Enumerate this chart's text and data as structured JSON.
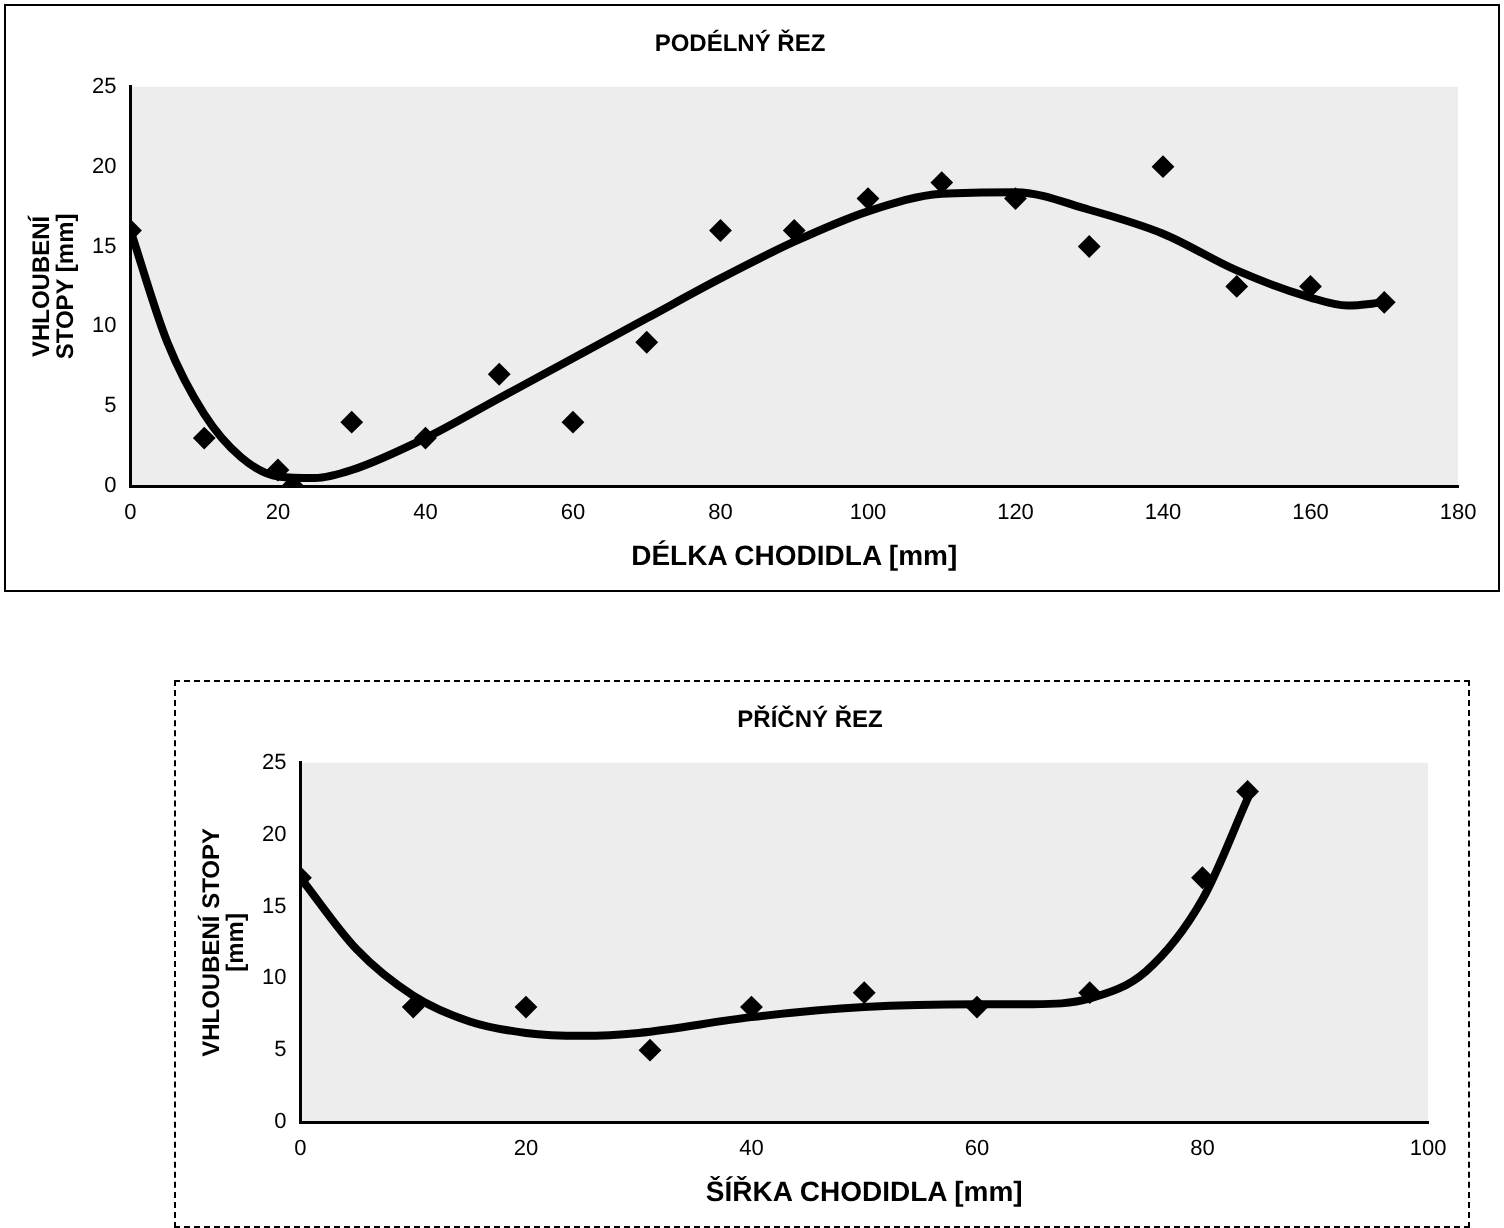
{
  "chart_data": [
    {
      "type": "scatter",
      "title": "PODÉLNÝ ŘEZ",
      "xlabel": "DÉLKA CHODIDLA [mm]",
      "ylabel": "VHLOUBENÍ\nSTOPY [mm]",
      "xlim": [
        0,
        180
      ],
      "xticks": [
        0,
        20,
        40,
        60,
        80,
        100,
        120,
        140,
        160,
        180
      ],
      "ylim": [
        0,
        25
      ],
      "yticks": [
        0,
        5,
        10,
        15,
        20,
        25
      ],
      "grid": false,
      "legend": false,
      "series": [
        {
          "type": "scatter",
          "color": "#000000",
          "marker": "diamond",
          "x": [
            0,
            10,
            20,
            22,
            30,
            40,
            50,
            60,
            70,
            80,
            90,
            100,
            110,
            120,
            130,
            140,
            150,
            160,
            170
          ],
          "values": [
            16,
            3,
            1,
            0,
            4,
            3,
            7,
            4,
            9,
            16,
            16,
            18,
            19,
            18,
            15,
            20,
            12.5,
            12.5,
            11.5
          ]
        },
        {
          "type": "line",
          "color": "#000000",
          "marker": "none",
          "line_style": "solid",
          "x": [
            0,
            5,
            10,
            15,
            20,
            25,
            30,
            40,
            50,
            60,
            70,
            80,
            90,
            100,
            110,
            120,
            130,
            140,
            150,
            160,
            165,
            170
          ],
          "values": [
            16,
            9,
            4.5,
            1.8,
            0.6,
            0.5,
            1,
            3,
            5.5,
            8,
            10.5,
            13,
            15.3,
            17.2,
            18.3,
            18.4,
            17.3,
            15.8,
            13.5,
            11.8,
            11.3,
            11.5
          ]
        }
      ]
    },
    {
      "type": "scatter",
      "title": "PŘÍČNÝ ŘEZ",
      "xlabel": "ŠÍŘKA CHODIDLA [mm]",
      "ylabel": "VHLOUBENÍ STOPY\n[mm]",
      "xlim": [
        0,
        100
      ],
      "xticks": [
        0,
        20,
        40,
        60,
        80,
        100
      ],
      "ylim": [
        0,
        25
      ],
      "yticks": [
        0,
        5,
        10,
        15,
        20,
        25
      ],
      "grid": false,
      "legend": false,
      "series": [
        {
          "type": "scatter",
          "color": "#000000",
          "marker": "diamond",
          "x": [
            0,
            10,
            20,
            31,
            40,
            50,
            60,
            70,
            80,
            84
          ],
          "values": [
            17,
            8,
            8,
            5,
            8,
            9,
            8,
            9,
            17,
            23
          ]
        },
        {
          "type": "line",
          "color": "#000000",
          "marker": "none",
          "line_style": "solid",
          "x": [
            0,
            5,
            10,
            15,
            20,
            25,
            30,
            40,
            50,
            60,
            65,
            70,
            75,
            80,
            84
          ],
          "values": [
            17,
            12,
            8.8,
            7,
            6.2,
            6,
            6.2,
            7.3,
            8,
            8.2,
            8.2,
            8.6,
            10.5,
            15.5,
            22.5
          ]
        }
      ]
    }
  ]
}
